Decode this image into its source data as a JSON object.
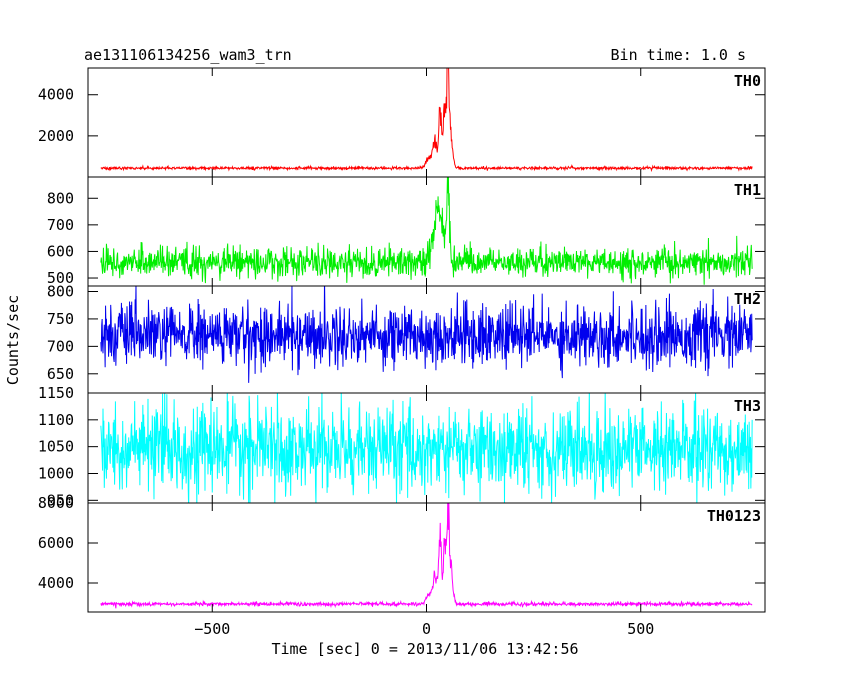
{
  "chart_data": {
    "type": "line",
    "title_left": "ae131106134256_wam3_trn",
    "title_right": "Bin time: 1.0 s",
    "xlabel": "Time [sec] 0 = 2013/11/06 13:42:56",
    "ylabel": "Counts/sec",
    "xlim": [
      -790,
      790
    ],
    "x_ticks": [
      -500,
      0,
      500
    ],
    "x_tick_labels": [
      "−500",
      "0",
      "500"
    ],
    "panels": [
      {
        "name": "TH0",
        "color": "#ff0000",
        "ylim": [
          0,
          5300
        ],
        "y_ticks": [
          2000,
          4000
        ],
        "y_tick_labels": [
          "2000",
          "4000"
        ],
        "baseline": 430,
        "noise": 35,
        "peaks": [
          [
            5,
            500,
            6
          ],
          [
            20,
            1300,
            5
          ],
          [
            32,
            2900,
            3
          ],
          [
            42,
            2700,
            3
          ],
          [
            50,
            4800,
            3
          ],
          [
            58,
            1500,
            4
          ]
        ]
      },
      {
        "name": "TH1",
        "color": "#00ee00",
        "ylim": [
          470,
          880
        ],
        "y_ticks": [
          500,
          600,
          700,
          800
        ],
        "y_tick_labels": [
          "500",
          "600",
          "700",
          "800"
        ],
        "baseline": 558,
        "noise": 28,
        "peaks": [
          [
            30,
            180,
            8
          ],
          [
            50,
            270,
            4
          ],
          [
            20,
            80,
            10
          ]
        ]
      },
      {
        "name": "TH2",
        "color": "#0000ee",
        "ylim": [
          615,
          810
        ],
        "y_ticks": [
          650,
          700,
          750,
          800
        ],
        "y_tick_labels": [
          "650",
          "700",
          "750",
          "800"
        ],
        "baseline": 720,
        "noise": 28,
        "peaks": []
      },
      {
        "name": "TH3",
        "color": "#00ffff",
        "ylim": [
          945,
          1150
        ],
        "y_ticks": [
          950,
          1000,
          1050,
          1100,
          1150
        ],
        "y_tick_labels": [
          "950",
          "1000",
          "1050",
          "1100",
          "1150"
        ],
        "baseline": 1045,
        "noise": 40,
        "peaks": []
      },
      {
        "name": "TH0123",
        "color": "#ff00ff",
        "ylim": [
          2550,
          8000
        ],
        "y_ticks": [
          4000,
          6000,
          8000
        ],
        "y_tick_labels": [
          "4000",
          "6000",
          "8000"
        ],
        "baseline": 2950,
        "noise": 45,
        "peaks": [
          [
            5,
            500,
            6
          ],
          [
            20,
            1600,
            5
          ],
          [
            32,
            3300,
            3
          ],
          [
            42,
            3000,
            3
          ],
          [
            50,
            4900,
            3
          ],
          [
            58,
            1600,
            4
          ]
        ]
      }
    ],
    "x_range_data": [
      -760,
      760
    ],
    "grid": false
  }
}
